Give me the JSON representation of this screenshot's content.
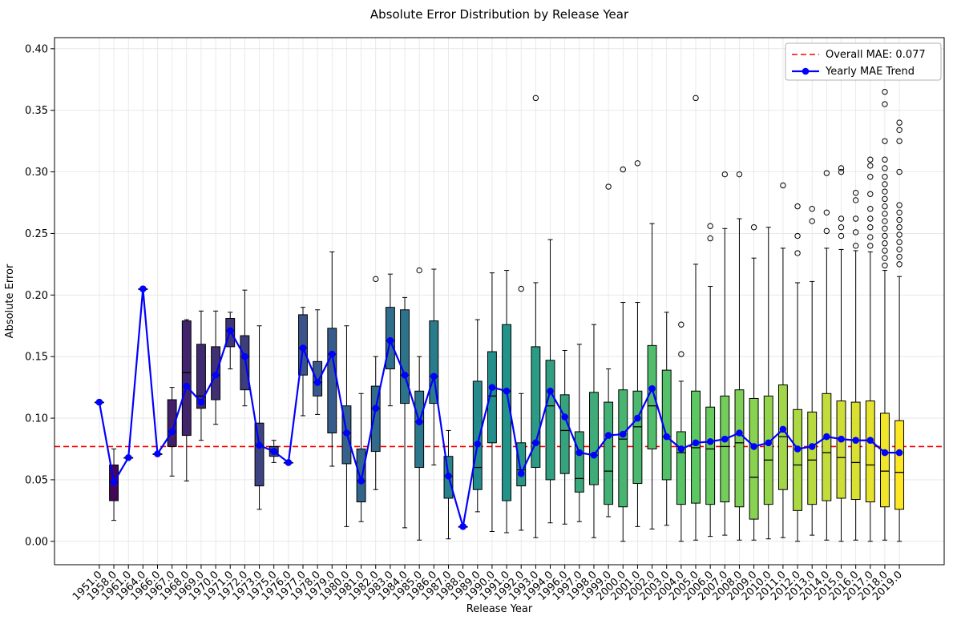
{
  "chart_data": {
    "type": "boxplot",
    "title": "Absolute Error Distribution by Release Year",
    "xlabel": "Release Year",
    "ylabel": "Absolute Error",
    "ylim": [
      -0.019,
      0.409
    ],
    "yticks": [
      0.0,
      0.05,
      0.1,
      0.15,
      0.2,
      0.25,
      0.3,
      0.35,
      0.4
    ],
    "grid": true,
    "legend_position": "upper right",
    "overall_mae": 0.077,
    "legend": [
      {
        "label": "Overall MAE: 0.077",
        "style": "dashed-line"
      },
      {
        "label": "Yearly MAE Trend",
        "style": "line-with-marker"
      }
    ],
    "colors": {
      "trend": "#0000ff",
      "mae_line": "#ff0000",
      "box_edge": "#000000",
      "viridis_stops": [
        "#440154",
        "#3b528b",
        "#21918c",
        "#5ec962",
        "#fde725"
      ]
    },
    "box_schema": [
      "whisker_low",
      "q1",
      "median",
      "q3",
      "whisker_high",
      "outliers"
    ],
    "categories": [
      "1951.0",
      "1958.0",
      "1961.0",
      "1964.0",
      "1966.0",
      "1967.0",
      "1968.0",
      "1969.0",
      "1970.0",
      "1971.0",
      "1972.0",
      "1973.0",
      "1975.0",
      "1976.0",
      "1977.0",
      "1978.0",
      "1979.0",
      "1980.0",
      "1981.0",
      "1982.0",
      "1983.0",
      "1984.0",
      "1985.0",
      "1986.0",
      "1987.0",
      "1988.0",
      "1989.0",
      "1990.0",
      "1991.0",
      "1992.0",
      "1993.0",
      "1994.0",
      "1996.0",
      "1997.0",
      "1998.0",
      "1999.0",
      "2000.0",
      "2001.0",
      "2002.0",
      "2003.0",
      "2004.0",
      "2005.0",
      "2006.0",
      "2007.0",
      "2008.0",
      "2009.0",
      "2010.0",
      "2011.0",
      "2012.0",
      "2013.0",
      "2014.0",
      "2015.0",
      "2016.0",
      "2017.0",
      "2018.0",
      "2019.0"
    ],
    "boxes": [
      [
        0.113,
        0.113,
        0.113,
        0.113,
        0.113,
        []
      ],
      [
        0.017,
        0.033,
        0.048,
        0.062,
        0.075,
        []
      ],
      [
        0.068,
        0.068,
        0.068,
        0.068,
        0.068,
        []
      ],
      [
        0.205,
        0.205,
        0.205,
        0.205,
        0.205,
        []
      ],
      [
        0.071,
        0.071,
        0.071,
        0.071,
        0.071,
        []
      ],
      [
        0.053,
        0.077,
        0.089,
        0.115,
        0.125,
        []
      ],
      [
        0.049,
        0.086,
        0.137,
        0.179,
        0.18,
        []
      ],
      [
        0.082,
        0.108,
        0.118,
        0.16,
        0.187,
        []
      ],
      [
        0.095,
        0.115,
        0.135,
        0.158,
        0.187,
        []
      ],
      [
        0.14,
        0.158,
        0.171,
        0.181,
        0.186,
        []
      ],
      [
        0.11,
        0.123,
        0.15,
        0.167,
        0.204,
        []
      ],
      [
        0.026,
        0.045,
        0.078,
        0.096,
        0.175,
        []
      ],
      [
        0.064,
        0.069,
        0.073,
        0.077,
        0.082,
        []
      ],
      [
        0.064,
        0.064,
        0.064,
        0.064,
        0.064,
        []
      ],
      [
        0.102,
        0.135,
        0.157,
        0.184,
        0.19,
        []
      ],
      [
        0.103,
        0.118,
        0.129,
        0.146,
        0.188,
        []
      ],
      [
        0.061,
        0.088,
        0.152,
        0.173,
        0.235,
        []
      ],
      [
        0.012,
        0.063,
        0.088,
        0.11,
        0.175,
        []
      ],
      [
        0.016,
        0.032,
        0.049,
        0.075,
        0.12,
        []
      ],
      [
        0.042,
        0.073,
        0.108,
        0.126,
        0.15,
        [
          0.213
        ]
      ],
      [
        0.11,
        0.14,
        0.163,
        0.19,
        0.217,
        []
      ],
      [
        0.011,
        0.112,
        0.135,
        0.188,
        0.198,
        []
      ],
      [
        0.001,
        0.06,
        0.097,
        0.122,
        0.15,
        [
          0.22
        ]
      ],
      [
        0.062,
        0.112,
        0.134,
        0.179,
        0.221,
        []
      ],
      [
        0.002,
        0.035,
        0.053,
        0.069,
        0.09,
        []
      ],
      [
        0.012,
        0.012,
        0.012,
        0.012,
        0.012,
        []
      ],
      [
        0.024,
        0.042,
        0.06,
        0.13,
        0.18,
        []
      ],
      [
        0.008,
        0.08,
        0.118,
        0.154,
        0.218,
        []
      ],
      [
        0.007,
        0.033,
        0.122,
        0.176,
        0.22,
        []
      ],
      [
        0.009,
        0.045,
        0.058,
        0.08,
        0.12,
        [
          0.205
        ]
      ],
      [
        0.003,
        0.06,
        0.08,
        0.158,
        0.21,
        [
          0.36
        ]
      ],
      [
        0.015,
        0.05,
        0.11,
        0.147,
        0.245,
        []
      ],
      [
        0.014,
        0.055,
        0.09,
        0.119,
        0.155,
        []
      ],
      [
        0.016,
        0.04,
        0.051,
        0.089,
        0.16,
        []
      ],
      [
        0.003,
        0.046,
        0.07,
        0.121,
        0.176,
        []
      ],
      [
        0.02,
        0.03,
        0.057,
        0.113,
        0.14,
        [
          0.288
        ]
      ],
      [
        0.0,
        0.028,
        0.083,
        0.123,
        0.194,
        [
          0.302
        ]
      ],
      [
        0.012,
        0.047,
        0.093,
        0.122,
        0.194,
        [
          0.307
        ]
      ],
      [
        0.01,
        0.075,
        0.11,
        0.159,
        0.258,
        []
      ],
      [
        0.013,
        0.05,
        0.085,
        0.139,
        0.186,
        []
      ],
      [
        0.0,
        0.03,
        0.072,
        0.089,
        0.13,
        [
          0.152,
          0.176
        ]
      ],
      [
        0.001,
        0.031,
        0.076,
        0.122,
        0.225,
        [
          0.36
        ]
      ],
      [
        0.004,
        0.03,
        0.075,
        0.109,
        0.207,
        [
          0.256,
          0.246
        ]
      ],
      [
        0.005,
        0.032,
        0.077,
        0.118,
        0.254,
        [
          0.298
        ]
      ],
      [
        0.001,
        0.028,
        0.08,
        0.123,
        0.262,
        [
          0.298
        ]
      ],
      [
        0.001,
        0.018,
        0.052,
        0.116,
        0.23,
        [
          0.255
        ]
      ],
      [
        0.002,
        0.03,
        0.066,
        0.118,
        0.255,
        []
      ],
      [
        0.003,
        0.042,
        0.085,
        0.127,
        0.238,
        [
          0.289
        ]
      ],
      [
        0.0,
        0.025,
        0.062,
        0.107,
        0.21,
        [
          0.272,
          0.248,
          0.234
        ]
      ],
      [
        0.005,
        0.03,
        0.066,
        0.105,
        0.211,
        [
          0.27,
          0.26
        ]
      ],
      [
        0.001,
        0.033,
        0.072,
        0.12,
        0.238,
        [
          0.299,
          0.267,
          0.252
        ]
      ],
      [
        0.0,
        0.035,
        0.068,
        0.114,
        0.237,
        [
          0.303,
          0.3,
          0.262,
          0.255,
          0.248
        ]
      ],
      [
        0.001,
        0.034,
        0.064,
        0.113,
        0.236,
        [
          0.283,
          0.277,
          0.262,
          0.251,
          0.24
        ]
      ],
      [
        0.0,
        0.032,
        0.062,
        0.114,
        0.235,
        [
          0.31,
          0.305,
          0.296,
          0.282,
          0.27,
          0.262,
          0.255,
          0.247,
          0.24
        ]
      ],
      [
        0.001,
        0.028,
        0.057,
        0.104,
        0.22,
        [
          0.365,
          0.355,
          0.325,
          0.31,
          0.303,
          0.296,
          0.29,
          0.284,
          0.278,
          0.272,
          0.266,
          0.26,
          0.254,
          0.248,
          0.242,
          0.236,
          0.23,
          0.224
        ]
      ],
      [
        0.0,
        0.026,
        0.056,
        0.098,
        0.215,
        [
          0.34,
          0.334,
          0.325,
          0.3,
          0.273,
          0.267,
          0.261,
          0.255,
          0.249,
          0.243,
          0.237,
          0.231,
          0.225
        ]
      ]
    ],
    "trend": {
      "name": "Yearly MAE Trend",
      "values": [
        0.113,
        0.048,
        0.068,
        0.205,
        0.071,
        0.089,
        0.126,
        0.113,
        0.135,
        0.171,
        0.15,
        0.078,
        0.073,
        0.064,
        0.157,
        0.129,
        0.152,
        0.088,
        0.049,
        0.108,
        0.163,
        0.135,
        0.097,
        0.134,
        0.053,
        0.012,
        0.079,
        0.125,
        0.122,
        0.055,
        0.08,
        0.122,
        0.101,
        0.072,
        0.07,
        0.086,
        0.087,
        0.1,
        0.124,
        0.085,
        0.075,
        0.08,
        0.081,
        0.083,
        0.088,
        0.077,
        0.08,
        0.091,
        0.075,
        0.077,
        0.085,
        0.083,
        0.082,
        0.082,
        0.072,
        0.072
      ]
    }
  }
}
